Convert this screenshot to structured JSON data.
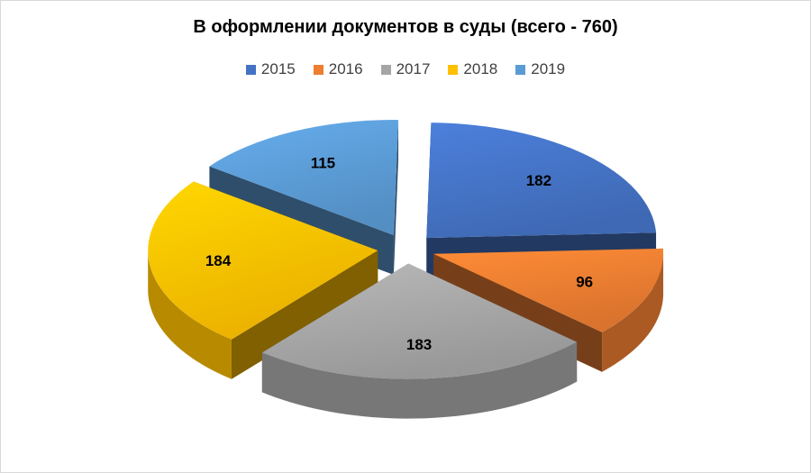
{
  "chart_data": {
    "type": "pie",
    "title": "В оформлении документов в суды (всего - 760)",
    "categories": [
      "2015",
      "2016",
      "2017",
      "2018",
      "2019"
    ],
    "values": [
      182,
      96,
      183,
      184,
      115
    ],
    "colors": [
      "#4472C4",
      "#ED7D31",
      "#A5A5A5",
      "#FFC000",
      "#5B9BD5"
    ],
    "exploded": true,
    "style": "3d",
    "legend_position": "top"
  }
}
